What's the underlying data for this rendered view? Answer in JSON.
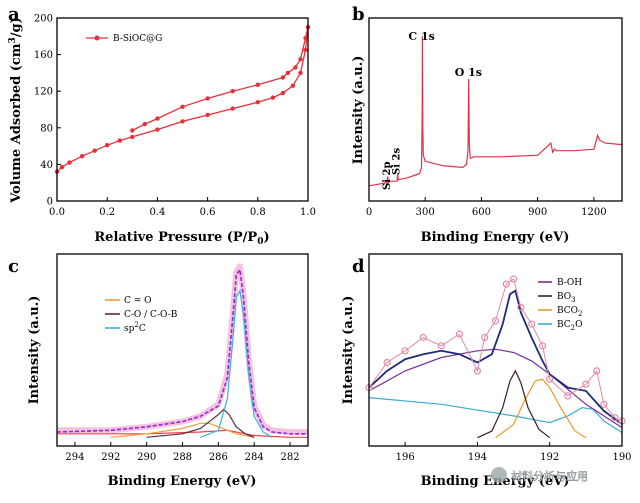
{
  "chart_data": [
    {
      "panel": "a",
      "type": "line",
      "xlabel": "Relative Pressure (P/P0)",
      "ylabel": "Volume Adsorbed (cm3/g)",
      "xlim": [
        0.0,
        1.0
      ],
      "ylim": [
        0,
        200
      ],
      "xticks": [
        "0.0",
        "0.2",
        "0.4",
        "0.6",
        "0.8",
        "1.0"
      ],
      "yticks": [
        "0",
        "40",
        "80",
        "120",
        "160",
        "200"
      ],
      "legend": "B-SiOC@G",
      "color": "#e8303a",
      "series": [
        {
          "name": "adsorption",
          "x": [
            0.0,
            0.02,
            0.05,
            0.1,
            0.15,
            0.2,
            0.25,
            0.3,
            0.4,
            0.5,
            0.6,
            0.7,
            0.8,
            0.86,
            0.9,
            0.94,
            0.97,
            0.99,
            1.0
          ],
          "y": [
            32,
            37,
            42,
            49,
            55,
            61,
            66,
            70,
            78,
            87,
            94,
            101,
            108,
            113,
            118,
            126,
            140,
            165,
            190
          ]
        },
        {
          "name": "desorption",
          "x": [
            1.0,
            0.99,
            0.97,
            0.95,
            0.92,
            0.9,
            0.8,
            0.7,
            0.6,
            0.5,
            0.4,
            0.35,
            0.3
          ],
          "y": [
            190,
            178,
            155,
            146,
            140,
            135,
            127,
            120,
            112,
            103,
            90,
            84,
            77
          ]
        }
      ]
    },
    {
      "panel": "b",
      "type": "line",
      "xlabel": "Binding Energy (eV)",
      "xlim": [
        0,
        1350
      ],
      "xticks": [
        "0",
        "300",
        "600",
        "900",
        "1200"
      ],
      "color": "#e0334a",
      "annotations": [
        {
          "text": "C 1s",
          "x": 285
        },
        {
          "text": "O 1s",
          "x": 532
        },
        {
          "text": "Si 2s",
          "x": 153
        },
        {
          "text": "Si 2p",
          "x": 102
        }
      ],
      "series": [
        {
          "name": "survey",
          "x": [
            0,
            50,
            95,
            100,
            103,
            110,
            150,
            153,
            156,
            200,
            270,
            280,
            284,
            285,
            287,
            290,
            300,
            400,
            500,
            520,
            528,
            532,
            535,
            540,
            560,
            700,
            900,
            970,
            980,
            990,
            1000,
            1100,
            1200,
            1220,
            1230,
            1260,
            1350
          ],
          "y": [
            0.02,
            0.03,
            0.04,
            0.08,
            0.04,
            0.05,
            0.05,
            0.1,
            0.06,
            0.07,
            0.1,
            0.14,
            0.5,
            1.0,
            0.4,
            0.22,
            0.18,
            0.15,
            0.14,
            0.16,
            0.25,
            0.72,
            0.3,
            0.2,
            0.21,
            0.21,
            0.22,
            0.3,
            0.24,
            0.26,
            0.25,
            0.25,
            0.26,
            0.35,
            0.32,
            0.3,
            0.29
          ]
        }
      ]
    },
    {
      "panel": "c",
      "type": "line",
      "xlabel": "Binding Energy (eV)",
      "ylabel": "Intensity (a.u.)",
      "xlim": [
        295,
        281
      ],
      "xticks": [
        "294",
        "292",
        "290",
        "288",
        "286",
        "284",
        "282"
      ],
      "legend": [
        "C = O",
        "C-O / C-O-B",
        "sp2C"
      ],
      "colors": {
        "C = O": "#e9a23b",
        "C-O / C-O-B": "#5b2c4a",
        "sp2C": "#38b6d6",
        "raw": "#f4b1d6",
        "fit": "#8a2be2",
        "background": "#f03c4a"
      },
      "series": [
        {
          "name": "raw",
          "x": [
            295,
            292,
            290,
            288,
            287,
            286,
            285.5,
            285.2,
            285,
            284.8,
            284.6,
            284.3,
            284,
            283.5,
            283,
            282,
            281
          ],
          "y": [
            0.04,
            0.04,
            0.06,
            0.09,
            0.12,
            0.19,
            0.36,
            0.7,
            0.95,
            0.98,
            0.82,
            0.45,
            0.18,
            0.07,
            0.04,
            0.03,
            0.03
          ]
        },
        {
          "name": "fit",
          "x": [
            295,
            292,
            290,
            288,
            287,
            286,
            285.5,
            285.2,
            285,
            284.8,
            284.6,
            284.3,
            284,
            283.5,
            283,
            282,
            281
          ],
          "y": [
            0.03,
            0.04,
            0.06,
            0.09,
            0.12,
            0.18,
            0.34,
            0.68,
            0.93,
            0.96,
            0.8,
            0.43,
            0.17,
            0.06,
            0.03,
            0.02,
            0.02
          ]
        },
        {
          "name": "C = O",
          "x": [
            292,
            290,
            288,
            287,
            286.5,
            286,
            285,
            284
          ],
          "y": [
            0.0,
            0.02,
            0.05,
            0.08,
            0.08,
            0.06,
            0.02,
            0.0
          ]
        },
        {
          "name": "C-O / C-O-B",
          "x": [
            290,
            288,
            287,
            286,
            285.7,
            285.4,
            285,
            284.5,
            284
          ],
          "y": [
            0.0,
            0.02,
            0.05,
            0.13,
            0.16,
            0.13,
            0.06,
            0.02,
            0.0
          ]
        },
        {
          "name": "sp2C",
          "x": [
            287,
            286,
            285.5,
            285.2,
            285,
            284.8,
            284.6,
            284.3,
            284,
            283.5,
            283
          ],
          "y": [
            0.0,
            0.04,
            0.22,
            0.55,
            0.8,
            0.84,
            0.7,
            0.35,
            0.12,
            0.03,
            0.0
          ]
        },
        {
          "name": "background",
          "x": [
            295,
            290,
            287,
            285.5,
            284,
            282,
            281
          ],
          "y": [
            0.02,
            0.02,
            0.03,
            0.04,
            0.01,
            0.0,
            0.0
          ]
        }
      ]
    },
    {
      "panel": "d",
      "type": "line",
      "xlabel": "Binding Energy (eV)",
      "ylabel": "Intensity (a.u.)",
      "xlim": [
        197,
        190
      ],
      "xticks": [
        "196",
        "194",
        "192",
        "190"
      ],
      "legend": [
        "B-OH",
        "BO3",
        "BCO2",
        "BC2O"
      ],
      "colors": {
        "B-OH": "#7a2e9a",
        "BO3": "#3d1f1f",
        "BCO2": "#e99a2c",
        "BC2O": "#3aaed0",
        "raw": "#e58aa8",
        "fit": "#1f2a7a"
      },
      "series": [
        {
          "name": "raw",
          "x": [
            197,
            196.5,
            196,
            195.5,
            195,
            194.5,
            194,
            193.8,
            193.5,
            193.2,
            193,
            192.8,
            192.5,
            192.2,
            192,
            191.5,
            191,
            190.7,
            190.5,
            190.2,
            190
          ],
          "y": [
            0.3,
            0.45,
            0.52,
            0.6,
            0.55,
            0.62,
            0.4,
            0.6,
            0.7,
            0.92,
            0.95,
            0.78,
            0.68,
            0.55,
            0.35,
            0.25,
            0.32,
            0.4,
            0.2,
            0.12,
            0.1
          ]
        },
        {
          "name": "fit",
          "x": [
            197,
            196.5,
            196,
            195.5,
            195,
            194.5,
            194,
            193.6,
            193.3,
            193.1,
            192.95,
            192.8,
            192.5,
            192.2,
            192,
            191.5,
            191,
            190.5,
            190
          ],
          "y": [
            0.3,
            0.4,
            0.47,
            0.5,
            0.52,
            0.5,
            0.45,
            0.5,
            0.68,
            0.86,
            0.88,
            0.75,
            0.6,
            0.46,
            0.38,
            0.3,
            0.28,
            0.16,
            0.08
          ]
        },
        {
          "name": "B-OH",
          "x": [
            197,
            196,
            195,
            194,
            193.5,
            193,
            192.5,
            192,
            191,
            190
          ],
          "y": [
            0.28,
            0.4,
            0.48,
            0.52,
            0.53,
            0.51,
            0.46,
            0.38,
            0.2,
            0.06
          ]
        },
        {
          "name": "BO3",
          "x": [
            194,
            193.6,
            193.3,
            193.1,
            192.95,
            192.8,
            192.6,
            192.3,
            192
          ],
          "y": [
            0.0,
            0.04,
            0.18,
            0.34,
            0.4,
            0.33,
            0.18,
            0.05,
            0.0
          ]
        },
        {
          "name": "BCO2",
          "x": [
            193.5,
            193,
            192.7,
            192.4,
            192.2,
            192,
            191.7,
            191.3,
            191
          ],
          "y": [
            0.0,
            0.08,
            0.22,
            0.34,
            0.35,
            0.3,
            0.18,
            0.04,
            0.0
          ]
        },
        {
          "name": "BC2O",
          "x": [
            197,
            195,
            193,
            192,
            191.5,
            191.1,
            190.8,
            190.5,
            190
          ],
          "y": [
            0.24,
            0.2,
            0.13,
            0.09,
            0.13,
            0.18,
            0.17,
            0.1,
            0.03
          ]
        }
      ]
    }
  ],
  "panels": {
    "a": {
      "label": "a",
      "xlabel": "Relative Pressure (P/P",
      "xlabel_sub": "0",
      "xlabel_end": ")",
      "ylabel": "Volume Adsorbed (cm",
      "ylabel_sup": "3",
      "ylabel_end": "/g)",
      "legend": "B-SiOC@G"
    },
    "b": {
      "label": "b",
      "xlabel": "Binding Energy (eV)",
      "ylabel": "Intensity (a.u.)"
    },
    "c": {
      "label": "c",
      "xlabel": "Binding Energy (eV)",
      "ylabel": "Intensity (a.u.)",
      "legend": [
        "C = O",
        "C-O / C-O-B",
        "sp"
      ],
      "legend_sp2_sup": "2",
      "legend_sp2_end": "C"
    },
    "d": {
      "label": "d",
      "xlabel": "Binding Energy (eV)",
      "ylabel": "Intensity (a.u.)",
      "legend_boh": "B-OH",
      "legend_bo3": "BO",
      "legend_bo3_sub": "3",
      "legend_bco2": "BCO",
      "legend_bco2_sub": "2",
      "legend_bc2o": "BC",
      "legend_bc2o_sub": "2",
      "legend_bc2o_end": "O"
    }
  },
  "watermark": "材料分析与应用"
}
